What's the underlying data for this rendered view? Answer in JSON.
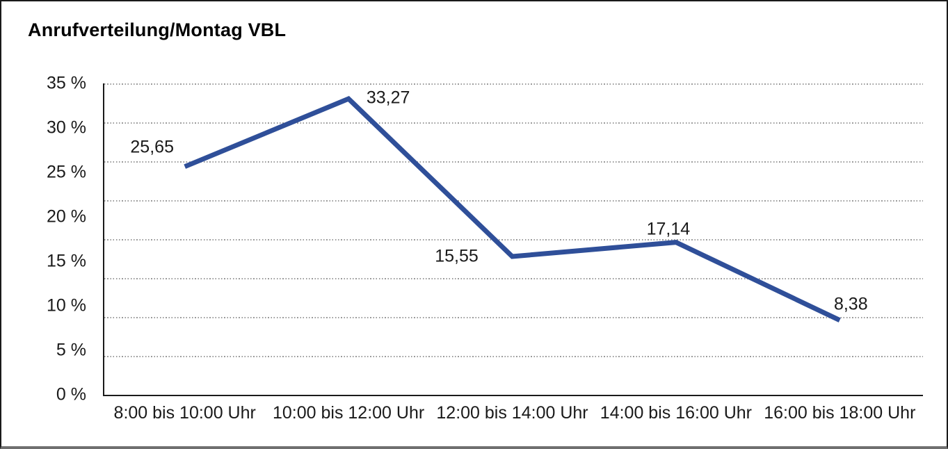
{
  "chart_data": {
    "type": "line",
    "title": "Anrufverteilung/Montag VBL",
    "categories": [
      "8:00 bis 10:00 Uhr",
      "10:00 bis 12:00 Uhr",
      "12:00 bis 14:00 Uhr",
      "14:00 bis 16:00 Uhr",
      "16:00 bis 18:00 Uhr"
    ],
    "series": [
      {
        "values": [
          25.65,
          33.27,
          15.55,
          17.14,
          8.38
        ],
        "point_labels": [
          "25,65",
          "33,27",
          "15,55",
          "17,14",
          "8,38"
        ]
      }
    ],
    "y_ticks": [
      {
        "value": 35,
        "label": "35 %"
      },
      {
        "value": 30,
        "label": "30 %"
      },
      {
        "value": 25,
        "label": "25 %"
      },
      {
        "value": 20,
        "label": "20 %"
      },
      {
        "value": 15,
        "label": "15 %"
      },
      {
        "value": 10,
        "label": "10 %"
      },
      {
        "value": 5,
        "label": "5 %"
      },
      {
        "value": 0,
        "label": "0 %"
      }
    ],
    "ylim": [
      0,
      35
    ],
    "grid": {
      "horizontal_divisions": 8,
      "style": "dotted"
    },
    "legend_position": "none",
    "line_color": "#2F4F99",
    "axis_color": "#1a1a1a",
    "gridline_color": "#9a9a9a",
    "text_color": "#1a1a1a"
  }
}
